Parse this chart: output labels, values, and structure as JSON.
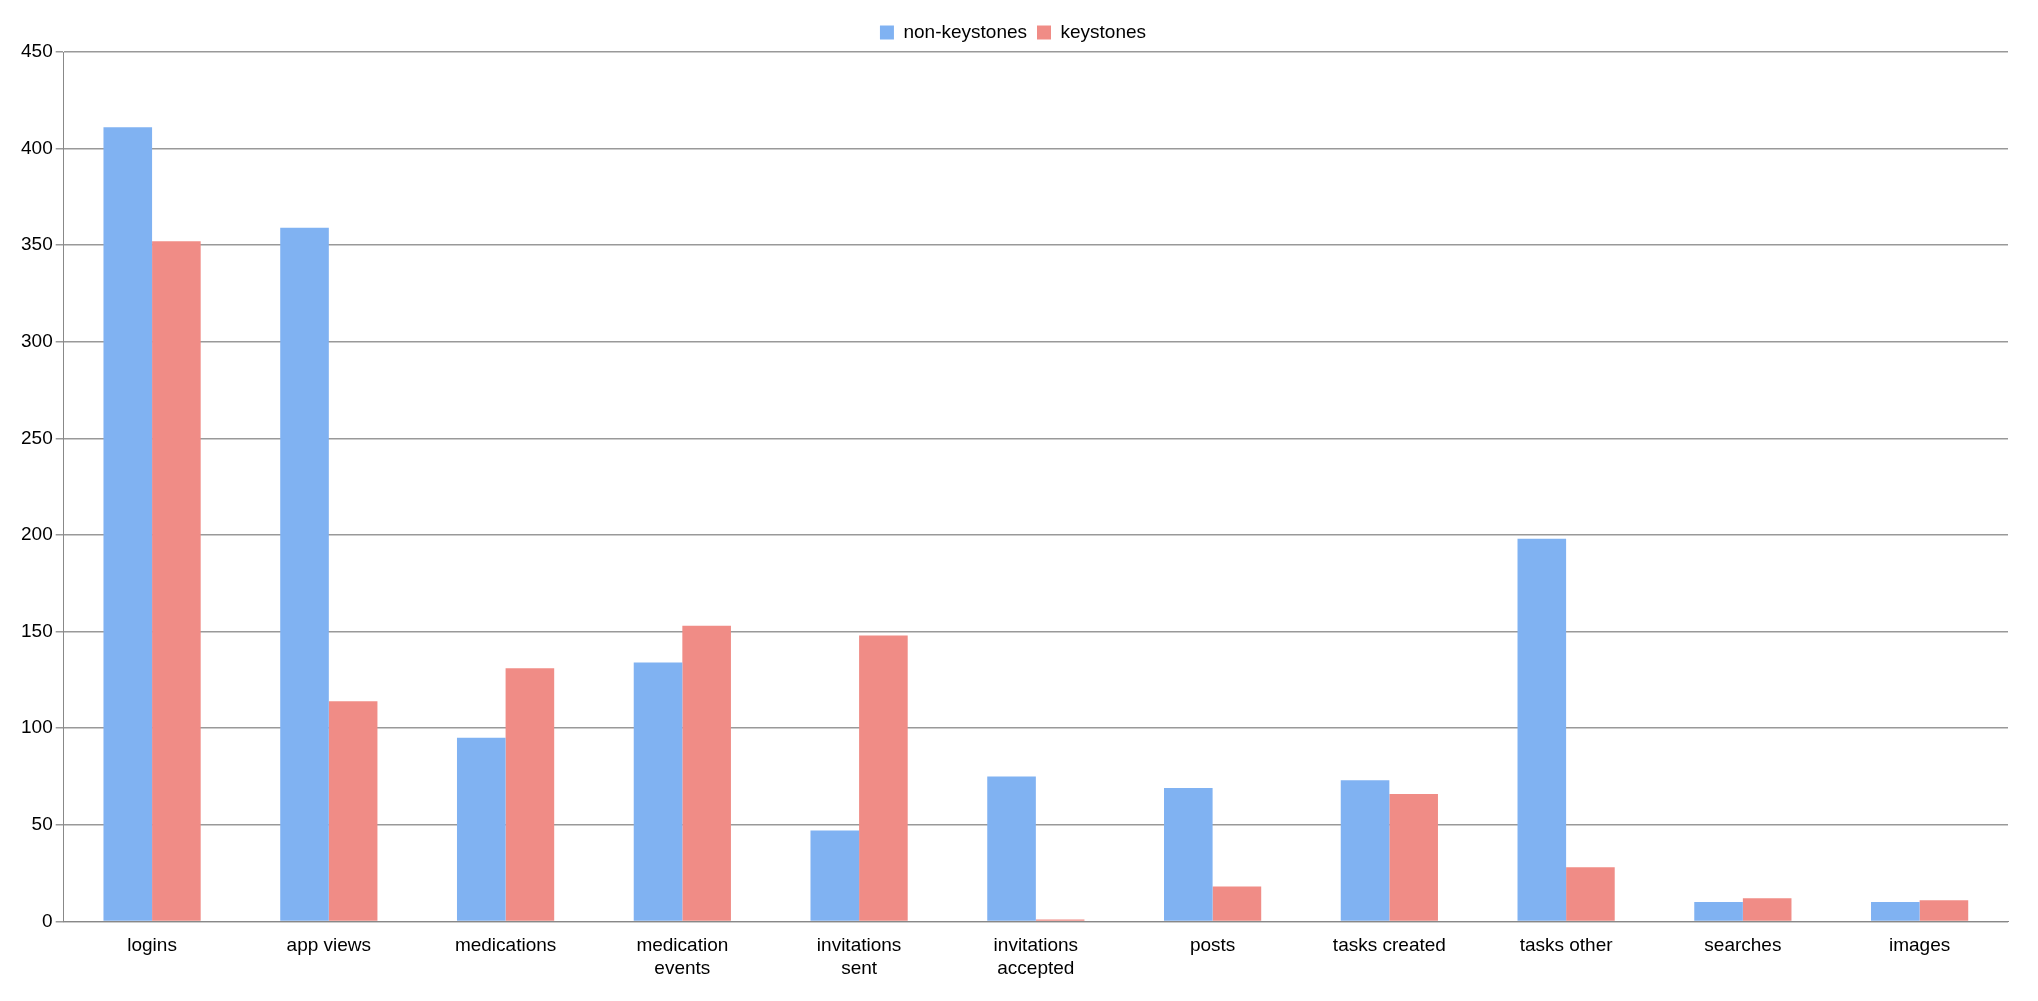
{
  "chart_data": {
    "type": "bar",
    "categories": [
      "logins",
      "app views",
      "medications",
      "medication events",
      "invitations sent",
      "invitations accepted",
      "posts",
      "tasks created",
      "tasks other",
      "searches",
      "images"
    ],
    "series": [
      {
        "name": "non-keystones",
        "color": "#80b2f2",
        "values": [
          411,
          359,
          95,
          134,
          47,
          75,
          69,
          73,
          198,
          10,
          10
        ]
      },
      {
        "name": "keystones",
        "color": "#f08c86",
        "values": [
          352,
          114,
          131,
          153,
          148,
          1,
          18,
          66,
          28,
          12,
          11
        ]
      }
    ],
    "ylim": [
      0,
      450
    ],
    "yticks": [
      0,
      50,
      100,
      150,
      200,
      250,
      300,
      350,
      400,
      450
    ],
    "grid": "y",
    "legend": "top"
  }
}
